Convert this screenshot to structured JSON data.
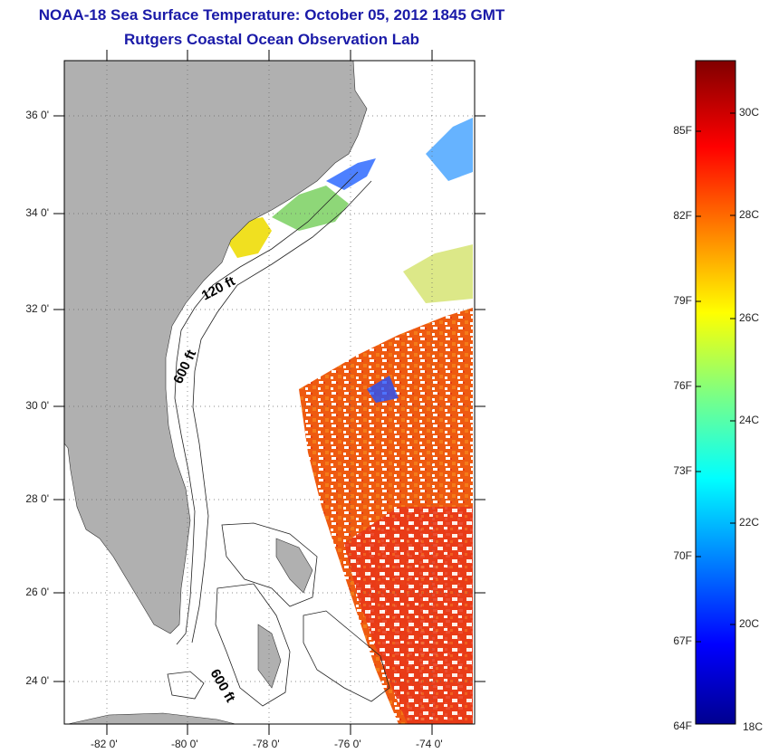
{
  "header": {
    "title": "NOAA-18 Sea Surface Temperature:  October 05, 2012 1845 GMT",
    "subtitle": "Rutgers Coastal Ocean Observation Lab"
  },
  "map": {
    "lat_ticks": [
      "36 0'",
      "34 0'",
      "32 0'",
      "30 0'",
      "28 0'",
      "26 0'",
      "24 0'"
    ],
    "lon_ticks": [
      "-82 0'",
      "-80 0'",
      "-78 0'",
      "-76 0'",
      "-74 0'"
    ],
    "lat_range": [
      23,
      37
    ],
    "lon_range": [
      -83.2,
      -73.2
    ],
    "grid": "dotted",
    "contours": [
      "120 ft",
      "600 ft",
      "600 ft"
    ],
    "land_color": "#b0b0b0"
  },
  "colorbar": {
    "f_labels": [
      "85F",
      "82F",
      "79F",
      "76F",
      "73F",
      "70F",
      "67F",
      "64F"
    ],
    "c_labels": [
      "30C",
      "28C",
      "26C",
      "24C",
      "22C",
      "20C",
      "18C"
    ],
    "min_f": "64F",
    "max_c_label": "30C",
    "colormap": "jet"
  }
}
